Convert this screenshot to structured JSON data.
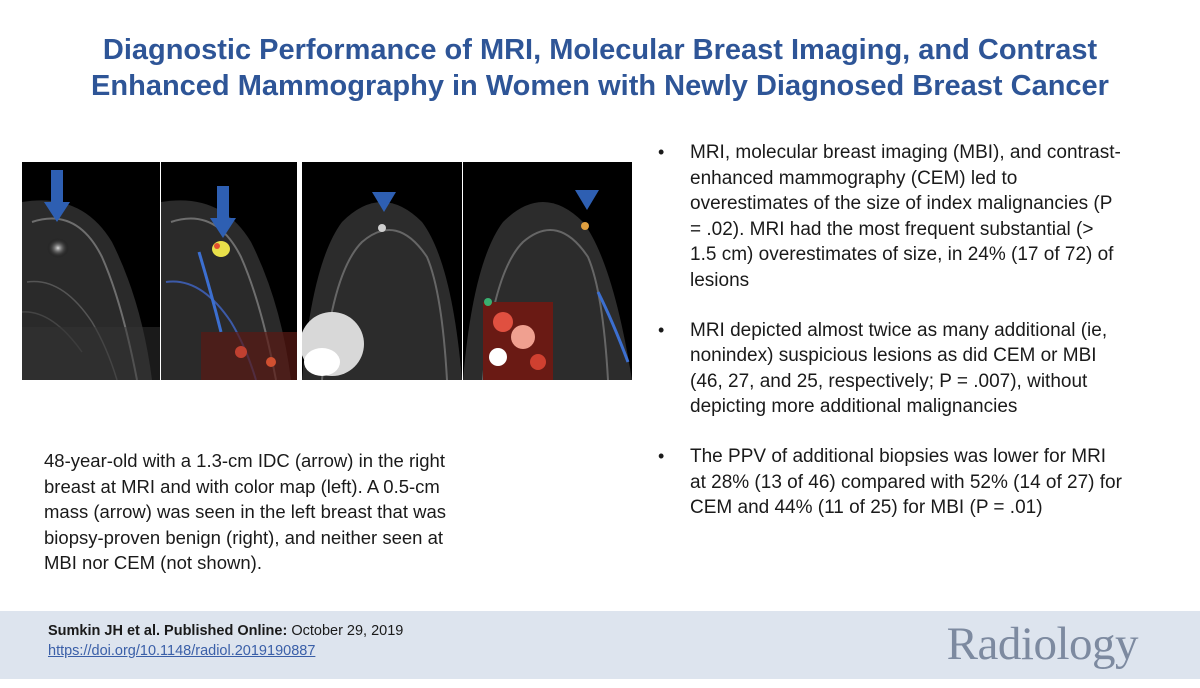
{
  "title": {
    "line1": "Diagnostic Performance of MRI, Molecular Breast Imaging, and Contrast",
    "line2": "Enhanced Mammography in Women with Newly Diagnosed Breast Cancer"
  },
  "figure": {
    "description_markers": [
      "arrow",
      "arrow",
      "arrowhead",
      "arrowhead"
    ],
    "colors": {
      "marker": "#2e5fb2",
      "background": "#000000"
    }
  },
  "caption": {
    "lines": [
      "48-year-old with a 1.3-cm IDC (arrow) in the right",
      "breast at MRI and with color map (left).  A 0.5-cm",
      "mass (arrow) was seen in the left breast that was",
      "biopsy-proven benign (right), and neither seen at",
      "MBI nor CEM (not shown)."
    ]
  },
  "bullets": [
    {
      "marker": "•",
      "lines": [
        "MRI, molecular breast imaging (MBI), and contrast-",
        "enhanced mammography (CEM) led to",
        "overestimates of the size of index malignancies (P",
        "= .02). MRI had the most frequent substantial (>",
        "1.5 cm) overestimates of size, in 24% (17 of 72) of",
        "lesions"
      ]
    },
    {
      "marker": "•",
      "lines": [
        "MRI depicted almost twice as many additional (ie,",
        "nonindex) suspicious lesions as did CEM or MBI",
        "(46, 27, and 25, respectively; P = .007), without",
        "depicting more additional malignancies"
      ]
    },
    {
      "marker": "•",
      "lines": [
        "The PPV of additional biopsies was lower for MRI",
        "at 28% (13 of 46) compared with 52% (14 of 27) for",
        "CEM and 44% (11 of 25) for MBI (P = .01)"
      ]
    }
  ],
  "footer": {
    "authors": "Sumkin JH et al. Published Online:",
    "date": " October 29, 2019",
    "doi": "https://doi.org/10.1148/radiol.2019190887",
    "logo": "Radiology"
  },
  "colors": {
    "title": "#2e5597",
    "footer_bg": "#dde4ee",
    "link": "#3a5fa8",
    "logo": "#7d8aa0"
  }
}
